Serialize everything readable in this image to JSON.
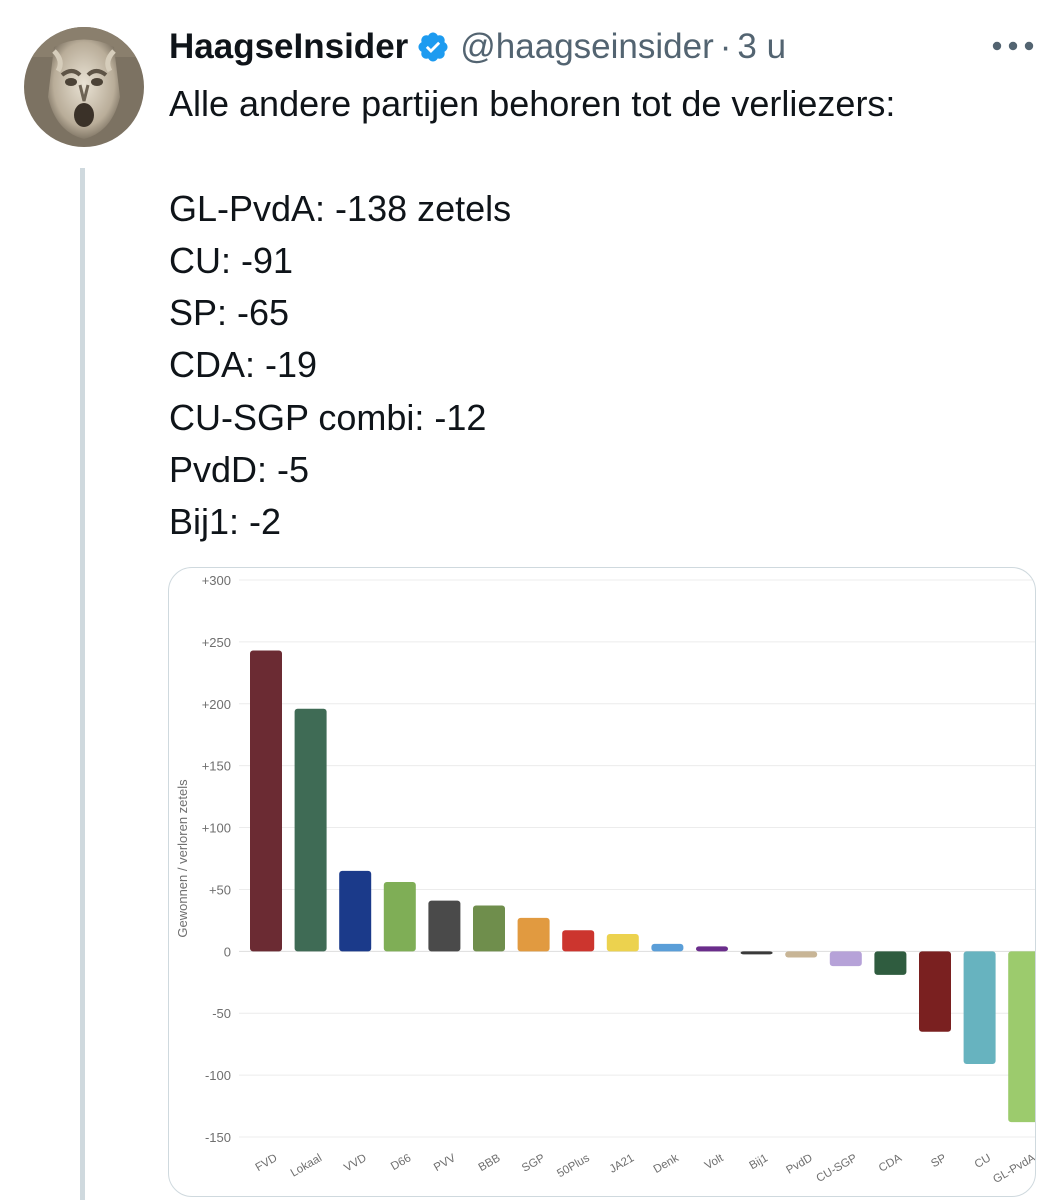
{
  "tweet": {
    "author_name": "HaagseInsider",
    "handle": "@haagseinsider",
    "separator": "·",
    "time": "3 u",
    "intro": "Alle andere partijen behoren tot de verliezers:",
    "lines": [
      "GL-PvdA: -138 zetels",
      "CU: -91",
      "SP: -65",
      "CDA: -19",
      "CU-SGP combi: -12",
      "PvdD: -5",
      "Bij1: -2"
    ],
    "icons": {
      "verified": "verified-badge-icon",
      "more": "more-options-icon"
    },
    "colors": {
      "text": "#0f1419",
      "secondary": "#536471",
      "verified": "#1d9bf0"
    }
  },
  "chart_data": {
    "type": "bar",
    "ylabel": "Gewonnen / verloren zetels",
    "ylim": [
      -150,
      300
    ],
    "yticks": [
      300,
      250,
      200,
      150,
      100,
      50,
      0,
      -50,
      -100,
      -150
    ],
    "ytick_labels": [
      "+300",
      "+250",
      "+200",
      "+150",
      "+100",
      "+50",
      "0",
      "-50",
      "-100",
      "-150"
    ],
    "grid": true,
    "categories": [
      "FVD",
      "Lokaal",
      "VVD",
      "D66",
      "PVV",
      "BBB",
      "SGP",
      "50Plus",
      "JA21",
      "Denk",
      "Volt",
      "Bij1",
      "PvdD",
      "CU-SGP",
      "CDA",
      "SP",
      "CU",
      "GL-PvdA"
    ],
    "values": [
      243,
      196,
      65,
      56,
      41,
      37,
      27,
      17,
      14,
      6,
      4,
      -2,
      -5,
      -12,
      -19,
      -65,
      -91,
      -138
    ],
    "colors": [
      "#6b2b33",
      "#3f6b55",
      "#1b3a8a",
      "#7fae56",
      "#4a4a4a",
      "#6f8e4c",
      "#e19a40",
      "#cc352e",
      "#ecd24e",
      "#5a9ed8",
      "#6a2d8b",
      "#3a3a3a",
      "#c8b596",
      "#b6a2d8",
      "#2f5c3f",
      "#7a2020",
      "#67b3bf",
      "#9ccb6d"
    ]
  }
}
